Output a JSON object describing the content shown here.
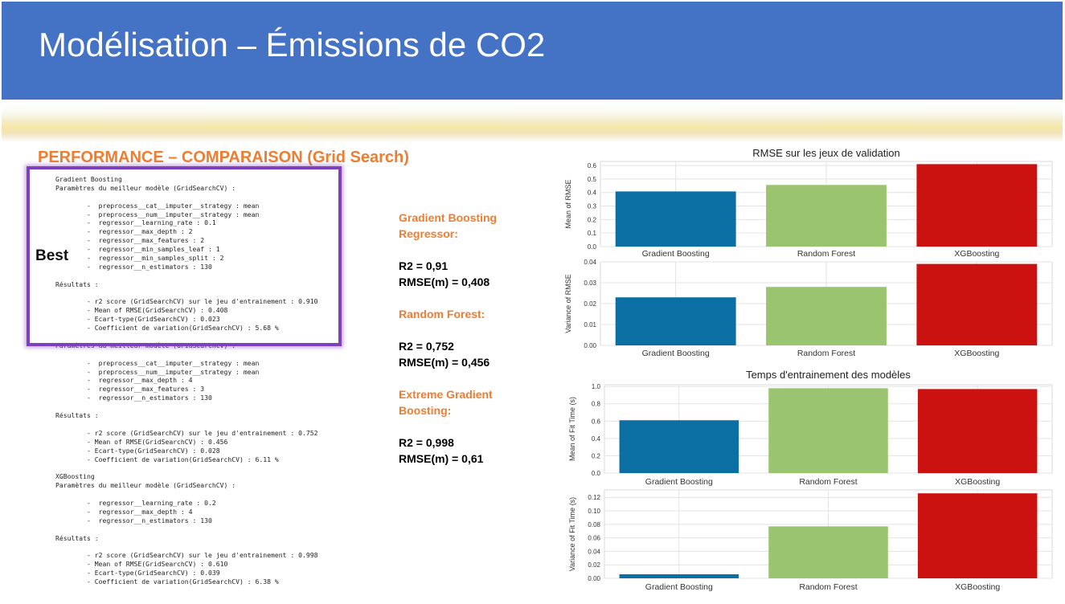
{
  "slide_title": "Modélisation – Émissions de CO2",
  "section_title": "PERFORMANCE – COMPARAISON (Grid Search)",
  "best_label": "Best",
  "code_lines": [
    "Gradient Boosting",
    "Paramètres du meilleur modèle (GridSearchCV) :",
    "",
    "        -  preprocess__cat__imputer__strategy : mean",
    "        -  preprocess__num__imputer__strategy : mean",
    "        -  regressor__learning_rate : 0.1",
    "        -  regressor__max_depth : 2",
    "        -  regressor__max_features : 2",
    "        -  regressor__min_samples_leaf : 1",
    "        -  regressor__min_samples_split : 2",
    "        -  regressor__n_estimators : 130",
    "",
    "Résultats :",
    "",
    "        - r2 score (GridSearchCV) sur le jeu d'entrainement : 0.910",
    "        - Mean of RMSE(GridSearchCV) : 0.408",
    "        - Ecart-type(GridSearchCV) : 0.023",
    "        - Coefficient de variation(GridSearchCV) : 5.68 %",
    "",
    "Paramètres du meilleur modèle (GridSearchCV) :",
    "",
    "        -  preprocess__cat__imputer__strategy : mean",
    "        -  preprocess__num__imputer__strategy : mean",
    "        -  regressor__max_depth : 4",
    "        -  regressor__max_features : 3",
    "        -  regressor__n_estimators : 130",
    "",
    "Résultats :",
    "",
    "        - r2 score (GridSearchCV) sur le jeu d'entrainement : 0.752",
    "        - Mean of RMSE(GridSearchCV) : 0.456",
    "        - Ecart-type(GridSearchCV) : 0.028",
    "        - Coefficient de variation(GridSearchCV) : 6.11 %",
    "",
    "XGBoosting",
    "Paramètres du meilleur modèle (GridSearchCV) :",
    "",
    "        -  regressor__learning_rate : 0.2",
    "        -  regressor__max_depth : 4",
    "        -  regressor__n_estimators : 130",
    "",
    "Résultats :",
    "",
    "        - r2 score (GridSearchCV) sur le jeu d'entrainement : 0.998",
    "        - Mean of RMSE(GridSearchCV) : 0.610",
    "        - Ecart-type(GridSearchCV) : 0.039",
    "        - Coefficient de variation(GridSearchCV) : 6.38 %"
  ],
  "summary": {
    "gb_heading": "Gradient Boosting Regressor:",
    "gb_r2": "R2 = 0,91",
    "gb_rmse": "RMSE(m)  = 0,408",
    "rf_heading": "Random Forest:",
    "rf_r2": "R2 = 0,752",
    "rf_rmse": "RMSE(m) = 0,456",
    "xgb_heading": "Extreme Gradient Boosting:",
    "xgb_r2": "R2 = 0,998",
    "xgb_rmse": "RMSE(m) = 0,61"
  },
  "colors": {
    "title_bar": "#4472c4",
    "accent_orange": "#ed7d31",
    "highlight": "#7f3fbf",
    "series": [
      "#0b6fa3",
      "#9bc471",
      "#cc1111"
    ]
  },
  "chart_data": [
    {
      "type": "bar",
      "title": "RMSE sur les jeux de validation",
      "categories": [
        "Gradient Boosting",
        "Random Forest",
        "XGBoosting"
      ],
      "values": [
        0.408,
        0.456,
        0.61
      ],
      "xlabel": "",
      "ylabel": "Mean of RMSE",
      "ylim": [
        0,
        0.63
      ],
      "yticks": [
        0.0,
        0.1,
        0.2,
        0.3,
        0.4,
        0.5,
        0.6
      ],
      "ytick_labels": [
        "0.0",
        "0.1",
        "0.2",
        "0.3",
        "0.4",
        "0.5",
        "0.6"
      ],
      "grid": true
    },
    {
      "type": "bar",
      "title": "",
      "categories": [
        "Gradient Boosting",
        "Random Forest",
        "XGBoosting"
      ],
      "values": [
        0.023,
        0.028,
        0.039
      ],
      "xlabel": "",
      "ylabel": "Variance of RMSE",
      "ylim": [
        0,
        0.04
      ],
      "yticks": [
        0.0,
        0.01,
        0.02,
        0.03,
        0.04
      ],
      "ytick_labels": [
        "0.00",
        "0.01",
        "0.02",
        "0.03",
        "0.04"
      ],
      "grid": true
    },
    {
      "type": "bar",
      "title": "Temps d'entrainement des modèles",
      "categories": [
        "Gradient Boosting",
        "Random Forest",
        "XGBoosting"
      ],
      "values": [
        0.61,
        0.98,
        0.97
      ],
      "xlabel": "",
      "ylabel": "Mean of Fit Time (s)",
      "ylim": [
        0,
        1.02
      ],
      "yticks": [
        0.0,
        0.2,
        0.4,
        0.6,
        0.8,
        1.0
      ],
      "ytick_labels": [
        "0.0",
        "0.2",
        "0.4",
        "0.6",
        "0.8",
        "1.0"
      ],
      "grid": true
    },
    {
      "type": "bar",
      "title": "",
      "categories": [
        "Gradient Boosting",
        "Random Forest",
        "XGBoosting"
      ],
      "values": [
        0.006,
        0.077,
        0.126
      ],
      "xlabel": "",
      "ylabel": "Variance of Fit Time (s)",
      "ylim": [
        0,
        0.131
      ],
      "yticks": [
        0.0,
        0.02,
        0.04,
        0.06,
        0.08,
        0.1,
        0.12
      ],
      "ytick_labels": [
        "0.00",
        "0.02",
        "0.04",
        "0.06",
        "0.08",
        "0.10",
        "0.12"
      ],
      "grid": true
    }
  ]
}
